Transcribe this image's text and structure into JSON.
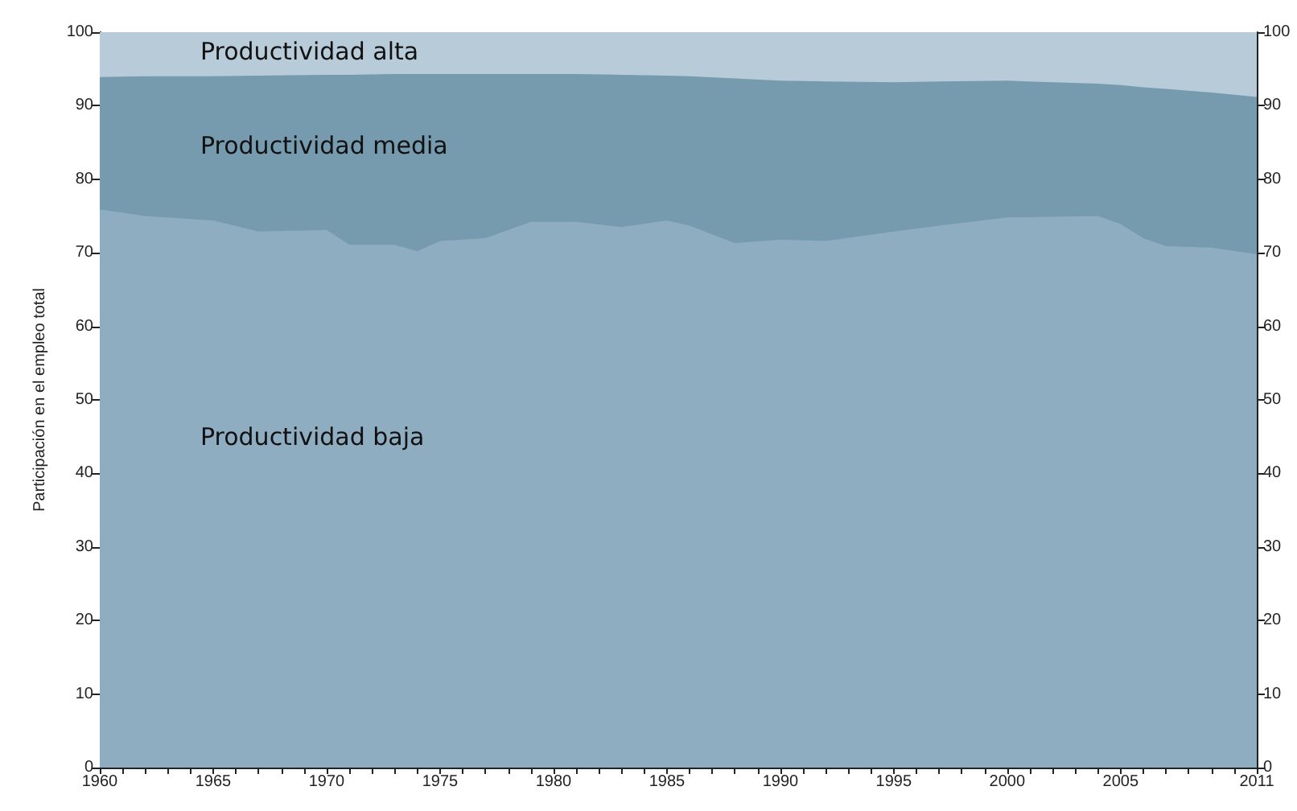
{
  "chart_data": {
    "type": "area",
    "stacked": true,
    "ylabel": "Participación en el empleo total",
    "x": [
      1960,
      1962,
      1965,
      1967,
      1970,
      1971,
      1973,
      1974,
      1975,
      1977,
      1979,
      1981,
      1983,
      1985,
      1986,
      1988,
      1990,
      1992,
      1995,
      1997,
      2000,
      2004,
      2005,
      2006,
      2007,
      2009,
      2011
    ],
    "series": [
      {
        "name": "Productividad baja",
        "color": "#8fadc0",
        "values": [
          75.9,
          75.0,
          74.4,
          72.9,
          73.1,
          71.1,
          71.1,
          70.2,
          71.6,
          72.0,
          74.2,
          74.2,
          73.5,
          74.4,
          73.7,
          71.3,
          71.8,
          71.6,
          72.9,
          73.7,
          74.8,
          75.0,
          73.9,
          72.0,
          70.9,
          70.7,
          69.8
        ]
      },
      {
        "name": "Productividad media",
        "color": "#769aae",
        "values": [
          18.0,
          19.0,
          19.6,
          21.2,
          21.1,
          23.1,
          23.2,
          24.1,
          22.7,
          22.3,
          20.1,
          20.1,
          20.7,
          19.7,
          20.3,
          22.4,
          21.6,
          21.7,
          20.3,
          19.6,
          18.6,
          18.0,
          18.9,
          20.5,
          21.4,
          21.1,
          21.4
        ]
      },
      {
        "name": "Productividad alta",
        "color": "#b7cbd8",
        "values": [
          6.1,
          6.0,
          6.0,
          5.9,
          5.8,
          5.8,
          5.7,
          5.7,
          5.7,
          5.7,
          5.7,
          5.7,
          5.8,
          5.9,
          6.0,
          6.3,
          6.6,
          6.7,
          6.8,
          6.7,
          6.6,
          7.0,
          7.2,
          7.5,
          7.7,
          8.2,
          8.8
        ]
      }
    ],
    "xlim": [
      1960,
      2011
    ],
    "xticks": [
      1960,
      {
        "value": 1961,
        "label": null
      },
      {
        "value": 1962,
        "label": null
      },
      {
        "value": 1963,
        "label": null
      },
      {
        "value": 1964,
        "label": null
      },
      1965,
      {
        "value": 1966,
        "label": null
      },
      {
        "value": 1967,
        "label": null
      },
      {
        "value": 1968,
        "label": null
      },
      {
        "value": 1969,
        "label": null
      },
      1970,
      {
        "value": 1971,
        "label": null
      },
      {
        "value": 1972,
        "label": null
      },
      {
        "value": 1973,
        "label": null
      },
      {
        "value": 1974,
        "label": null
      },
      1975,
      {
        "value": 1976,
        "label": null
      },
      {
        "value": 1977,
        "label": null
      },
      {
        "value": 1978,
        "label": null
      },
      {
        "value": 1979,
        "label": null
      },
      1980,
      {
        "value": 1981,
        "label": null
      },
      {
        "value": 1982,
        "label": null
      },
      {
        "value": 1983,
        "label": null
      },
      {
        "value": 1984,
        "label": null
      },
      1985,
      {
        "value": 1986,
        "label": null
      },
      {
        "value": 1987,
        "label": null
      },
      {
        "value": 1988,
        "label": null
      },
      {
        "value": 1989,
        "label": null
      },
      1990,
      {
        "value": 1991,
        "label": null
      },
      {
        "value": 1992,
        "label": null
      },
      {
        "value": 1993,
        "label": null
      },
      {
        "value": 1994,
        "label": null
      },
      1995,
      {
        "value": 1996,
        "label": null
      },
      {
        "value": 1997,
        "label": null
      },
      {
        "value": 1998,
        "label": null
      },
      {
        "value": 1999,
        "label": null
      },
      2000,
      {
        "value": 2001,
        "label": null
      },
      {
        "value": 2002,
        "label": null
      },
      {
        "value": 2003,
        "label": null
      },
      {
        "value": 2004,
        "label": null
      },
      2005,
      {
        "value": 2006,
        "label": null
      },
      {
        "value": 2007,
        "label": null
      },
      {
        "value": 2008,
        "label": null
      },
      {
        "value": 2009,
        "label": null
      },
      {
        "value": 2010,
        "label": null
      },
      2011
    ],
    "ylim": [
      0,
      100
    ],
    "yticks": [
      0,
      10,
      20,
      30,
      40,
      50,
      60,
      70,
      80,
      90,
      100
    ],
    "y2lim": [
      0,
      100
    ],
    "y2ticks": [
      0,
      10,
      20,
      30,
      40,
      50,
      60,
      70,
      80,
      90,
      100
    ],
    "legend": false
  }
}
